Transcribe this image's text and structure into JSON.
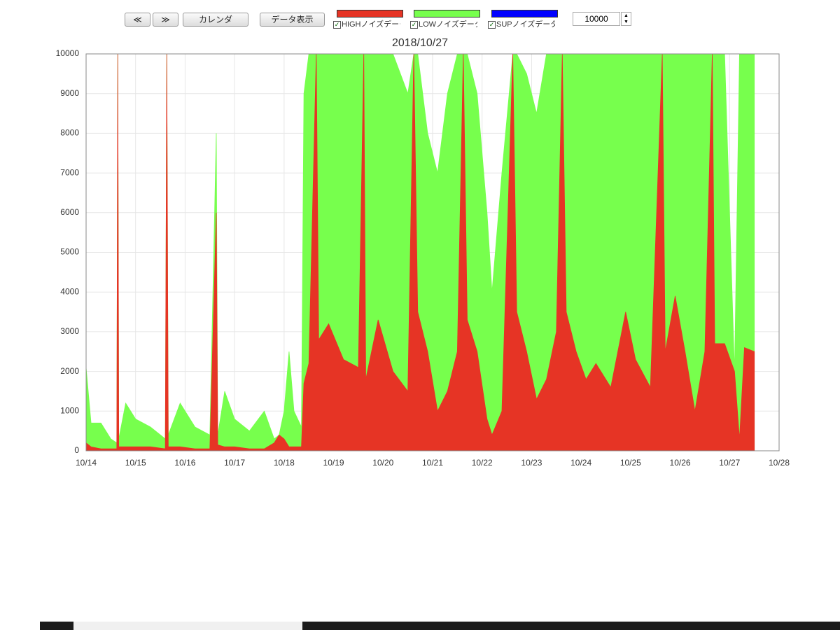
{
  "toolbar": {
    "buttons": [
      "≪",
      "≫",
      "カレンダ",
      "データ表示"
    ],
    "extra_legend": {
      "label": "SUPノイズデータ",
      "color": "#0000ff"
    },
    "range_input": "10000"
  },
  "chart_data": {
    "type": "area",
    "title": "2018/10/27",
    "x": [
      0,
      0.1,
      0.3,
      0.5,
      0.62,
      0.64,
      0.66,
      0.8,
      1.0,
      1.3,
      1.6,
      1.63,
      1.66,
      1.9,
      2.2,
      2.5,
      2.63,
      2.66,
      2.8,
      3.0,
      3.3,
      3.6,
      3.8,
      3.9,
      4.0,
      4.1,
      4.2,
      4.35,
      4.4,
      4.5,
      4.65,
      4.7,
      4.9,
      5.2,
      5.5,
      5.61,
      5.65,
      5.9,
      6.2,
      6.5,
      6.62,
      6.7,
      6.9,
      7.1,
      7.3,
      7.5,
      7.62,
      7.7,
      7.9,
      8.1,
      8.2,
      8.4,
      8.62,
      8.7,
      8.9,
      9.1,
      9.3,
      9.5,
      9.62,
      9.7,
      9.9,
      10.1,
      10.3,
      10.6,
      10.9,
      11.1,
      11.4,
      11.64,
      11.7,
      11.9,
      12.1,
      12.3,
      12.5,
      12.65,
      12.7,
      12.9,
      13.1,
      13.2,
      13.3,
      13.5
    ],
    "series": [
      {
        "name": "LOWノイズデータ",
        "color": "#77ff4d",
        "values": [
          2100,
          700,
          700,
          300,
          200,
          10000,
          300,
          1200,
          800,
          600,
          300,
          10000,
          400,
          1200,
          600,
          400,
          8000,
          400,
          1500,
          800,
          500,
          1000,
          300,
          400,
          1000,
          2500,
          1000,
          600,
          9000,
          10000,
          10000,
          10000,
          10000,
          10000,
          10000,
          10000,
          10000,
          10000,
          10000,
          9000,
          10000,
          10000,
          8000,
          7000,
          9000,
          10000,
          10000,
          10000,
          9000,
          6000,
          4000,
          7000,
          10000,
          10000,
          9500,
          8500,
          10000,
          10000,
          10000,
          10000,
          10000,
          10000,
          10000,
          10000,
          10000,
          10000,
          10000,
          10000,
          10000,
          10000,
          10000,
          10000,
          10000,
          10000,
          10000,
          10000,
          2000,
          10000,
          10000,
          10000
        ]
      },
      {
        "name": "HIGHノイズデータ",
        "color": "#e63425",
        "values": [
          200,
          100,
          50,
          50,
          50,
          10000,
          100,
          100,
          100,
          100,
          50,
          10000,
          100,
          100,
          50,
          50,
          6000,
          150,
          100,
          100,
          50,
          50,
          200,
          400,
          300,
          100,
          100,
          100,
          1700,
          2200,
          10000,
          2800,
          3200,
          2300,
          2100,
          10000,
          1800,
          3300,
          2000,
          1500,
          10000,
          3500,
          2500,
          1000,
          1500,
          2500,
          10000,
          3300,
          2500,
          800,
          400,
          1000,
          10000,
          3500,
          2500,
          1300,
          1800,
          3000,
          10000,
          3500,
          2500,
          1800,
          2200,
          1600,
          3500,
          2300,
          1600,
          10000,
          2500,
          3900,
          2500,
          1000,
          2500,
          10000,
          2700,
          2700,
          2000,
          300,
          2600,
          2500
        ]
      }
    ],
    "xlim": [
      0,
      14
    ],
    "xticks": [
      {
        "value": 0,
        "label": "10/14"
      },
      {
        "value": 1,
        "label": "10/15"
      },
      {
        "value": 2,
        "label": "10/16"
      },
      {
        "value": 3,
        "label": "10/17"
      },
      {
        "value": 4,
        "label": "10/18"
      },
      {
        "value": 5,
        "label": "10/19"
      },
      {
        "value": 6,
        "label": "10/20"
      },
      {
        "value": 7,
        "label": "10/21"
      },
      {
        "value": 8,
        "label": "10/22"
      },
      {
        "value": 9,
        "label": "10/23"
      },
      {
        "value": 10,
        "label": "10/24"
      },
      {
        "value": 11,
        "label": "10/25"
      },
      {
        "value": 12,
        "label": "10/26"
      },
      {
        "value": 13,
        "label": "10/27"
      },
      {
        "value": 14,
        "label": "10/28"
      }
    ],
    "ylim": [
      0,
      10000
    ],
    "yticks": [
      0,
      1000,
      2000,
      3000,
      4000,
      5000,
      6000,
      7000,
      8000,
      9000,
      10000
    ],
    "grid": true
  }
}
